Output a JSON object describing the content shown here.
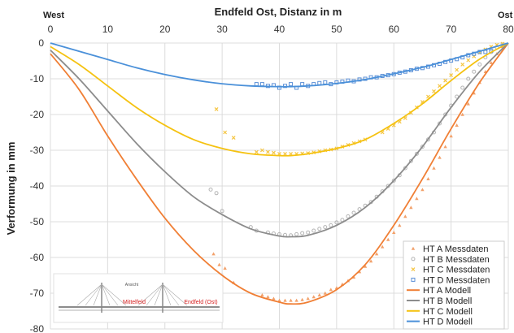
{
  "chart_data": {
    "type": "line",
    "title": "Endfeld Ost, Distanz in m",
    "xlabel": "Endfeld Ost, Distanz in m",
    "ylabel": "Verformung  in mm",
    "edge_left": "West",
    "edge_right": "Ost",
    "xlim": [
      0,
      80
    ],
    "ylim": [
      -80,
      0
    ],
    "x_ticks": [
      0,
      10,
      20,
      30,
      40,
      50,
      60,
      70,
      80
    ],
    "y_ticks": [
      0,
      -10,
      -20,
      -30,
      -40,
      -50,
      -60,
      -70,
      -80
    ],
    "grid": true,
    "legend_position": "bottom-right",
    "series": [
      {
        "name": "HT A Modell",
        "kind": "line",
        "color": "#f07f35",
        "x": [
          0,
          5,
          10,
          15,
          20,
          25,
          30,
          35,
          40,
          42,
          45,
          50,
          55,
          60,
          65,
          70,
          75,
          80
        ],
        "y": [
          -3,
          -13,
          -26,
          -38,
          -49,
          -58,
          -65,
          -70,
          -72.5,
          -73,
          -72.5,
          -69,
          -62,
          -51,
          -38,
          -24,
          -11,
          0
        ]
      },
      {
        "name": "HT B Modell",
        "kind": "line",
        "color": "#8c8c8c",
        "x": [
          0,
          5,
          10,
          15,
          20,
          25,
          30,
          35,
          40,
          42,
          45,
          50,
          55,
          60,
          65,
          70,
          75,
          80
        ],
        "y": [
          -2,
          -10,
          -19,
          -28,
          -36,
          -43,
          -48,
          -52,
          -54,
          -54.2,
          -53.8,
          -51,
          -46,
          -38.5,
          -29,
          -18,
          -8,
          0
        ]
      },
      {
        "name": "HT C Modell",
        "kind": "line",
        "color": "#f5c211",
        "x": [
          0,
          5,
          10,
          15,
          20,
          25,
          30,
          35,
          40,
          42,
          45,
          50,
          55,
          60,
          65,
          70,
          75,
          80
        ],
        "y": [
          -1,
          -6,
          -12,
          -18,
          -23,
          -27,
          -29.5,
          -31,
          -31.5,
          -31.5,
          -31,
          -29.5,
          -27,
          -22.5,
          -17,
          -10.5,
          -4.5,
          0
        ]
      },
      {
        "name": "HT D Modell",
        "kind": "line",
        "color": "#4a90d9",
        "x": [
          0,
          5,
          10,
          15,
          20,
          25,
          30,
          35,
          40,
          42,
          45,
          50,
          55,
          60,
          65,
          70,
          75,
          80
        ],
        "y": [
          0,
          -2.3,
          -4.6,
          -6.9,
          -8.8,
          -10.3,
          -11.4,
          -12,
          -12.2,
          -12.2,
          -12,
          -11.3,
          -10.2,
          -8.6,
          -6.8,
          -4.6,
          -2.3,
          0
        ]
      },
      {
        "name": "HT A Messdaten",
        "kind": "scatter",
        "marker": "triangle",
        "color": "#f2a16b",
        "x": [
          28.5,
          29.5,
          30.5,
          32,
          37,
          38,
          39,
          40,
          41,
          42,
          43,
          44,
          45,
          46,
          47,
          48,
          49,
          50,
          51,
          52,
          53,
          54,
          55,
          56,
          57,
          58,
          59,
          60,
          61,
          62,
          63,
          64,
          65,
          66,
          67,
          68,
          69,
          70,
          71,
          72,
          73,
          74,
          75,
          76,
          77,
          78,
          79
        ],
        "y": [
          -59,
          -62,
          -63,
          -67,
          -70.5,
          -71,
          -71.5,
          -72,
          -72,
          -72,
          -72,
          -71.8,
          -71.5,
          -71,
          -70.5,
          -70,
          -69,
          -68.5,
          -67.5,
          -66.5,
          -65.5,
          -64,
          -62.5,
          -61,
          -59,
          -57,
          -55,
          -53,
          -51,
          -48.5,
          -46,
          -43.5,
          -41,
          -38,
          -35,
          -32,
          -29,
          -26,
          -23,
          -20,
          -17,
          -14,
          -11,
          -8,
          -5.5,
          -3,
          -1
        ]
      },
      {
        "name": "HT B Messdaten",
        "kind": "scatter",
        "marker": "circle",
        "color": "#b5b5b5",
        "x": [
          28,
          29,
          30,
          35,
          36,
          38,
          39,
          40,
          41,
          42,
          43,
          44,
          45,
          46,
          47,
          48,
          49,
          50,
          51,
          52,
          53,
          54,
          55,
          56,
          57,
          58,
          59,
          60,
          61,
          62,
          63,
          64,
          65,
          66,
          67,
          68,
          69,
          70,
          71,
          72,
          73,
          74,
          75,
          76,
          77,
          78,
          79
        ],
        "y": [
          -41,
          -42,
          -47,
          -51.5,
          -52.5,
          -53,
          -53.3,
          -53.5,
          -53.7,
          -53.8,
          -53.5,
          -53.2,
          -53,
          -52.5,
          -52,
          -51.5,
          -51,
          -50.2,
          -49.5,
          -48.5,
          -47.5,
          -46.5,
          -45.5,
          -44.5,
          -43,
          -41.5,
          -40,
          -38.5,
          -37,
          -35,
          -33,
          -31,
          -29,
          -27,
          -25,
          -22.5,
          -20,
          -17.5,
          -15,
          -12.5,
          -10,
          -8,
          -6,
          -4,
          -2.5,
          -1.2,
          -0.4
        ]
      },
      {
        "name": "HT C Messdaten",
        "kind": "scatter",
        "marker": "x",
        "color": "#f5c542",
        "x": [
          29,
          30.5,
          32,
          36,
          37,
          38,
          39,
          40,
          41,
          42,
          43,
          44,
          45,
          46,
          47,
          48,
          49,
          50,
          51,
          52,
          53,
          54,
          55,
          58,
          59,
          60,
          61,
          62,
          63,
          64,
          65,
          66,
          67,
          68,
          69,
          70,
          71,
          72,
          73,
          74,
          75,
          76,
          77,
          78,
          79
        ],
        "y": [
          -18.5,
          -25,
          -26.5,
          -30.5,
          -30,
          -30.5,
          -30.7,
          -31,
          -31,
          -31,
          -31,
          -30.9,
          -30.8,
          -30.6,
          -30.3,
          -30,
          -29.8,
          -29.5,
          -29,
          -28.5,
          -28,
          -27.5,
          -27,
          -25,
          -24,
          -23,
          -22,
          -21,
          -19.5,
          -18,
          -16.5,
          -15,
          -13.5,
          -12,
          -10.5,
          -9,
          -7.5,
          -6,
          -4.8,
          -3.7,
          -2.7,
          -1.8,
          -1,
          -0.5,
          -0.2
        ]
      },
      {
        "name": "HT D Messdaten",
        "kind": "scatter",
        "marker": "square",
        "color": "#5b8fd6",
        "x": [
          36,
          37,
          38,
          39,
          40,
          41,
          42,
          43,
          44,
          45,
          46,
          47,
          48,
          49,
          50,
          51,
          52,
          53,
          54,
          55,
          56,
          57,
          58,
          59,
          60,
          61,
          62,
          63,
          64,
          65,
          66,
          67,
          68,
          69,
          70,
          71,
          72,
          73,
          74,
          75,
          76,
          77
        ],
        "y": [
          -11.5,
          -11.5,
          -12,
          -11.8,
          -12.5,
          -12,
          -11.5,
          -12.5,
          -11.5,
          -12,
          -11.5,
          -11.2,
          -11,
          -11.5,
          -11,
          -10.8,
          -10.5,
          -10.7,
          -10.2,
          -10,
          -9.6,
          -9.6,
          -9.2,
          -9,
          -8.7,
          -8.3,
          -8,
          -7.6,
          -7.2,
          -7,
          -6.6,
          -6.2,
          -5.8,
          -5.3,
          -4.9,
          -4.5,
          -4,
          -3.4,
          -3,
          -2.5,
          -2.5,
          -2.2
        ]
      }
    ],
    "legend_order": [
      "HT A Messdaten",
      "HT B Messdaten",
      "HT C Messdaten",
      "HT D Messdaten",
      "HT A Modell",
      "HT B Modell",
      "HT C Modell",
      "HT D Modell"
    ],
    "inset": {
      "label_top": "Ansicht",
      "label_mid": "Mittelfeld",
      "label_end": "Endfeld (Ost)"
    }
  }
}
